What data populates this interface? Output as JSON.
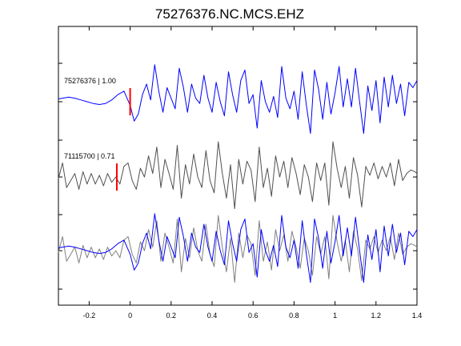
{
  "chart_data": {
    "type": "line",
    "title": "75276376.NC.MCS.EHZ",
    "xlabel": "",
    "ylabel": "",
    "xlim": [
      -0.35,
      1.4
    ],
    "xticks": [
      -0.2,
      0,
      0.2,
      0.4,
      0.6,
      0.8,
      1,
      1.2,
      1.4
    ],
    "xtick_labels": [
      "-0.2",
      "0",
      "0.2",
      "0.4",
      "0.6",
      "0.8",
      "1",
      "1.2",
      "1.4"
    ],
    "grid": false,
    "colors": {
      "primary": "#0000ff",
      "secondary": "#505050",
      "overlay": "#808080",
      "pick": "#ff0000"
    },
    "traces": [
      {
        "label": "75276376 | 1.00",
        "color": "#0000ff",
        "pick_time": 0.0,
        "x": [
          -0.35,
          -0.33,
          -0.3,
          -0.27,
          -0.24,
          -0.21,
          -0.18,
          -0.15,
          -0.12,
          -0.09,
          -0.06,
          -0.03,
          0.0,
          0.02,
          0.04,
          0.06,
          0.08,
          0.1,
          0.12,
          0.14,
          0.16,
          0.18,
          0.2,
          0.22,
          0.24,
          0.26,
          0.28,
          0.3,
          0.32,
          0.34,
          0.36,
          0.38,
          0.4,
          0.42,
          0.44,
          0.46,
          0.48,
          0.5,
          0.52,
          0.54,
          0.56,
          0.58,
          0.6,
          0.62,
          0.64,
          0.66,
          0.68,
          0.7,
          0.72,
          0.74,
          0.76,
          0.78,
          0.8,
          0.82,
          0.84,
          0.86,
          0.88,
          0.9,
          0.92,
          0.94,
          0.96,
          0.98,
          1.0,
          1.02,
          1.04,
          1.06,
          1.08,
          1.1,
          1.12,
          1.14,
          1.16,
          1.18,
          1.2,
          1.22,
          1.24,
          1.26,
          1.28,
          1.3,
          1.32,
          1.34,
          1.36,
          1.38,
          1.4
        ],
        "y": [
          0.08,
          0.1,
          0.13,
          0.1,
          0.05,
          0.0,
          -0.05,
          -0.08,
          -0.05,
          0.05,
          0.2,
          0.3,
          -0.1,
          -0.55,
          -0.35,
          0.2,
          0.5,
          0.05,
          1.05,
          0.3,
          -0.3,
          0.4,
          0.1,
          -0.2,
          0.95,
          0.4,
          -0.3,
          0.5,
          0.1,
          -0.05,
          0.75,
          0.1,
          -0.3,
          0.55,
          0.0,
          -0.4,
          0.85,
          0.2,
          -0.3,
          0.6,
          0.9,
          -0.05,
          0.2,
          -0.75,
          0.6,
          0.0,
          -0.3,
          0.15,
          -0.45,
          1.0,
          0.1,
          -0.2,
          0.3,
          -0.5,
          0.85,
          -0.1,
          -0.9,
          0.9,
          0.35,
          -0.5,
          0.55,
          -0.35,
          0.25,
          1.0,
          -0.15,
          0.65,
          -0.15,
          0.95,
          0.0,
          -0.9,
          0.45,
          -0.25,
          0.6,
          -0.6,
          0.7,
          -0.15,
          0.75,
          -0.05,
          0.5,
          -0.4,
          0.55,
          0.4,
          0.6
        ]
      },
      {
        "label": "71115700 | 0.71",
        "color": "#505050",
        "pick_time": -0.065,
        "x": [
          -0.35,
          -0.33,
          -0.31,
          -0.29,
          -0.27,
          -0.25,
          -0.23,
          -0.21,
          -0.19,
          -0.17,
          -0.15,
          -0.13,
          -0.11,
          -0.09,
          -0.07,
          -0.05,
          -0.03,
          -0.01,
          0.01,
          0.03,
          0.05,
          0.07,
          0.09,
          0.11,
          0.13,
          0.15,
          0.17,
          0.19,
          0.21,
          0.23,
          0.25,
          0.27,
          0.29,
          0.31,
          0.33,
          0.35,
          0.37,
          0.39,
          0.41,
          0.43,
          0.45,
          0.47,
          0.49,
          0.51,
          0.53,
          0.55,
          0.57,
          0.59,
          0.61,
          0.63,
          0.65,
          0.67,
          0.69,
          0.71,
          0.73,
          0.75,
          0.77,
          0.79,
          0.81,
          0.83,
          0.85,
          0.87,
          0.89,
          0.91,
          0.93,
          0.95,
          0.97,
          0.99,
          1.01,
          1.03,
          1.05,
          1.07,
          1.09,
          1.11,
          1.13,
          1.15,
          1.17,
          1.19,
          1.21,
          1.23,
          1.25,
          1.27,
          1.29,
          1.31,
          1.33,
          1.35,
          1.37,
          1.39,
          1.4
        ],
        "y": [
          -0.05,
          0.4,
          -0.3,
          -0.1,
          0.1,
          -0.35,
          0.15,
          -0.2,
          0.1,
          -0.2,
          0.05,
          -0.25,
          0.1,
          -0.15,
          0.0,
          -0.2,
          0.3,
          0.4,
          -0.1,
          -0.35,
          0.25,
          0.0,
          0.6,
          0.1,
          0.85,
          -0.3,
          0.5,
          0.1,
          -0.35,
          0.9,
          -0.6,
          0.35,
          -0.2,
          0.65,
          0.0,
          -0.3,
          0.75,
          -0.1,
          -0.45,
          1.0,
          0.1,
          -0.6,
          0.35,
          -0.9,
          0.5,
          -0.2,
          0.45,
          0.2,
          -0.7,
          0.85,
          -0.3,
          0.25,
          -0.55,
          0.6,
          0.0,
          0.45,
          -0.3,
          0.55,
          0.1,
          -0.5,
          0.35,
          0.0,
          -0.7,
          0.4,
          -0.1,
          0.4,
          -0.8,
          1.0,
          0.25,
          -0.3,
          0.3,
          -0.6,
          0.55,
          0.05,
          -0.85,
          0.3,
          0.05,
          0.4,
          -0.05,
          0.3,
          0.0,
          0.4,
          -0.25,
          0.5,
          -0.1,
          0.1,
          0.2,
          0.15,
          0.1
        ]
      },
      {
        "label": "",
        "color": "#808080",
        "x": [
          -0.35,
          -0.33,
          -0.31,
          -0.29,
          -0.27,
          -0.25,
          -0.23,
          -0.21,
          -0.19,
          -0.17,
          -0.15,
          -0.13,
          -0.11,
          -0.09,
          -0.07,
          -0.05,
          -0.03,
          -0.01,
          0.01,
          0.03,
          0.05,
          0.07,
          0.09,
          0.11,
          0.13,
          0.15,
          0.17,
          0.19,
          0.21,
          0.23,
          0.25,
          0.27,
          0.29,
          0.31,
          0.33,
          0.35,
          0.37,
          0.39,
          0.41,
          0.43,
          0.45,
          0.47,
          0.49,
          0.51,
          0.53,
          0.55,
          0.57,
          0.59,
          0.61,
          0.63,
          0.65,
          0.67,
          0.69,
          0.71,
          0.73,
          0.75,
          0.77,
          0.79,
          0.81,
          0.83,
          0.85,
          0.87,
          0.89,
          0.91,
          0.93,
          0.95,
          0.97,
          0.99,
          1.01,
          1.03,
          1.05,
          1.07,
          1.09,
          1.11,
          1.13,
          1.15,
          1.17,
          1.19,
          1.21,
          1.23,
          1.25,
          1.27,
          1.29,
          1.31,
          1.33,
          1.35,
          1.37,
          1.39,
          1.4
        ],
        "y": [
          -0.05,
          0.4,
          -0.3,
          -0.1,
          0.1,
          -0.35,
          0.15,
          -0.2,
          0.1,
          -0.2,
          0.05,
          -0.25,
          0.1,
          -0.15,
          0.0,
          -0.2,
          0.3,
          0.4,
          -0.1,
          -0.35,
          0.25,
          0.0,
          0.6,
          0.1,
          0.85,
          -0.3,
          0.5,
          0.1,
          -0.35,
          0.9,
          -0.6,
          0.35,
          -0.2,
          0.65,
          0.0,
          -0.3,
          0.75,
          -0.1,
          -0.45,
          1.0,
          0.1,
          -0.6,
          0.35,
          -0.9,
          0.5,
          -0.2,
          0.45,
          0.2,
          -0.7,
          0.85,
          -0.3,
          0.25,
          -0.55,
          0.6,
          0.0,
          0.45,
          -0.3,
          0.55,
          0.1,
          -0.5,
          0.35,
          0.0,
          -0.7,
          0.4,
          -0.1,
          0.4,
          -0.8,
          1.0,
          0.25,
          -0.3,
          0.3,
          -0.6,
          0.55,
          0.05,
          -0.85,
          0.3,
          0.05,
          0.4,
          -0.05,
          0.3,
          0.0,
          0.4,
          -0.25,
          0.5,
          -0.1,
          0.1,
          0.2,
          0.15,
          0.1
        ]
      },
      {
        "label": "",
        "color": "#0000ff",
        "x": [
          -0.35,
          -0.33,
          -0.3,
          -0.27,
          -0.24,
          -0.21,
          -0.18,
          -0.15,
          -0.12,
          -0.09,
          -0.06,
          -0.03,
          0.0,
          0.02,
          0.04,
          0.06,
          0.08,
          0.1,
          0.12,
          0.14,
          0.16,
          0.18,
          0.2,
          0.22,
          0.24,
          0.26,
          0.28,
          0.3,
          0.32,
          0.34,
          0.36,
          0.38,
          0.4,
          0.42,
          0.44,
          0.46,
          0.48,
          0.5,
          0.52,
          0.54,
          0.56,
          0.58,
          0.6,
          0.62,
          0.64,
          0.66,
          0.68,
          0.7,
          0.72,
          0.74,
          0.76,
          0.78,
          0.8,
          0.82,
          0.84,
          0.86,
          0.88,
          0.9,
          0.92,
          0.94,
          0.96,
          0.98,
          1.0,
          1.02,
          1.04,
          1.06,
          1.08,
          1.1,
          1.12,
          1.14,
          1.16,
          1.18,
          1.2,
          1.22,
          1.24,
          1.26,
          1.28,
          1.3,
          1.32,
          1.34,
          1.36,
          1.38,
          1.4
        ],
        "y": [
          0.08,
          0.1,
          0.13,
          0.1,
          0.05,
          0.0,
          -0.05,
          -0.08,
          -0.05,
          0.05,
          0.2,
          0.3,
          -0.1,
          -0.55,
          -0.35,
          0.2,
          0.5,
          0.05,
          1.05,
          0.3,
          -0.3,
          0.4,
          0.1,
          -0.2,
          0.95,
          0.4,
          -0.3,
          0.5,
          0.1,
          -0.05,
          0.75,
          0.1,
          -0.3,
          0.55,
          0.0,
          -0.4,
          0.85,
          0.2,
          -0.3,
          0.6,
          0.9,
          -0.05,
          0.2,
          -0.75,
          0.6,
          0.0,
          -0.3,
          0.15,
          -0.45,
          1.0,
          0.1,
          -0.2,
          0.3,
          -0.5,
          0.85,
          -0.1,
          -0.9,
          0.9,
          0.35,
          -0.5,
          0.55,
          -0.35,
          0.25,
          1.0,
          -0.15,
          0.65,
          -0.15,
          0.95,
          0.0,
          -0.9,
          0.45,
          -0.25,
          0.6,
          -0.6,
          0.7,
          -0.15,
          0.75,
          -0.05,
          0.5,
          -0.4,
          0.55,
          0.4,
          0.6
        ]
      }
    ]
  }
}
